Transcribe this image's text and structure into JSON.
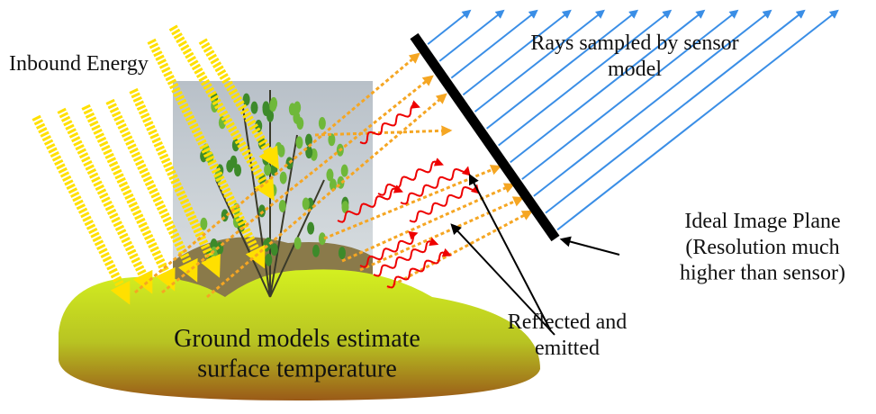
{
  "labels": {
    "inbound": {
      "lines": [
        "Inbound Energy"
      ]
    },
    "rays": {
      "lines": [
        "Rays sampled by sensor",
        "model"
      ]
    },
    "plane": {
      "lines": [
        "Ideal Image Plane",
        "(Resolution much",
        "higher than sensor)"
      ]
    },
    "reflected": {
      "lines": [
        "Reflected and",
        "emitted"
      ]
    },
    "ground": {
      "lines": [
        "Ground models estimate",
        "surface temperature"
      ]
    }
  }
}
